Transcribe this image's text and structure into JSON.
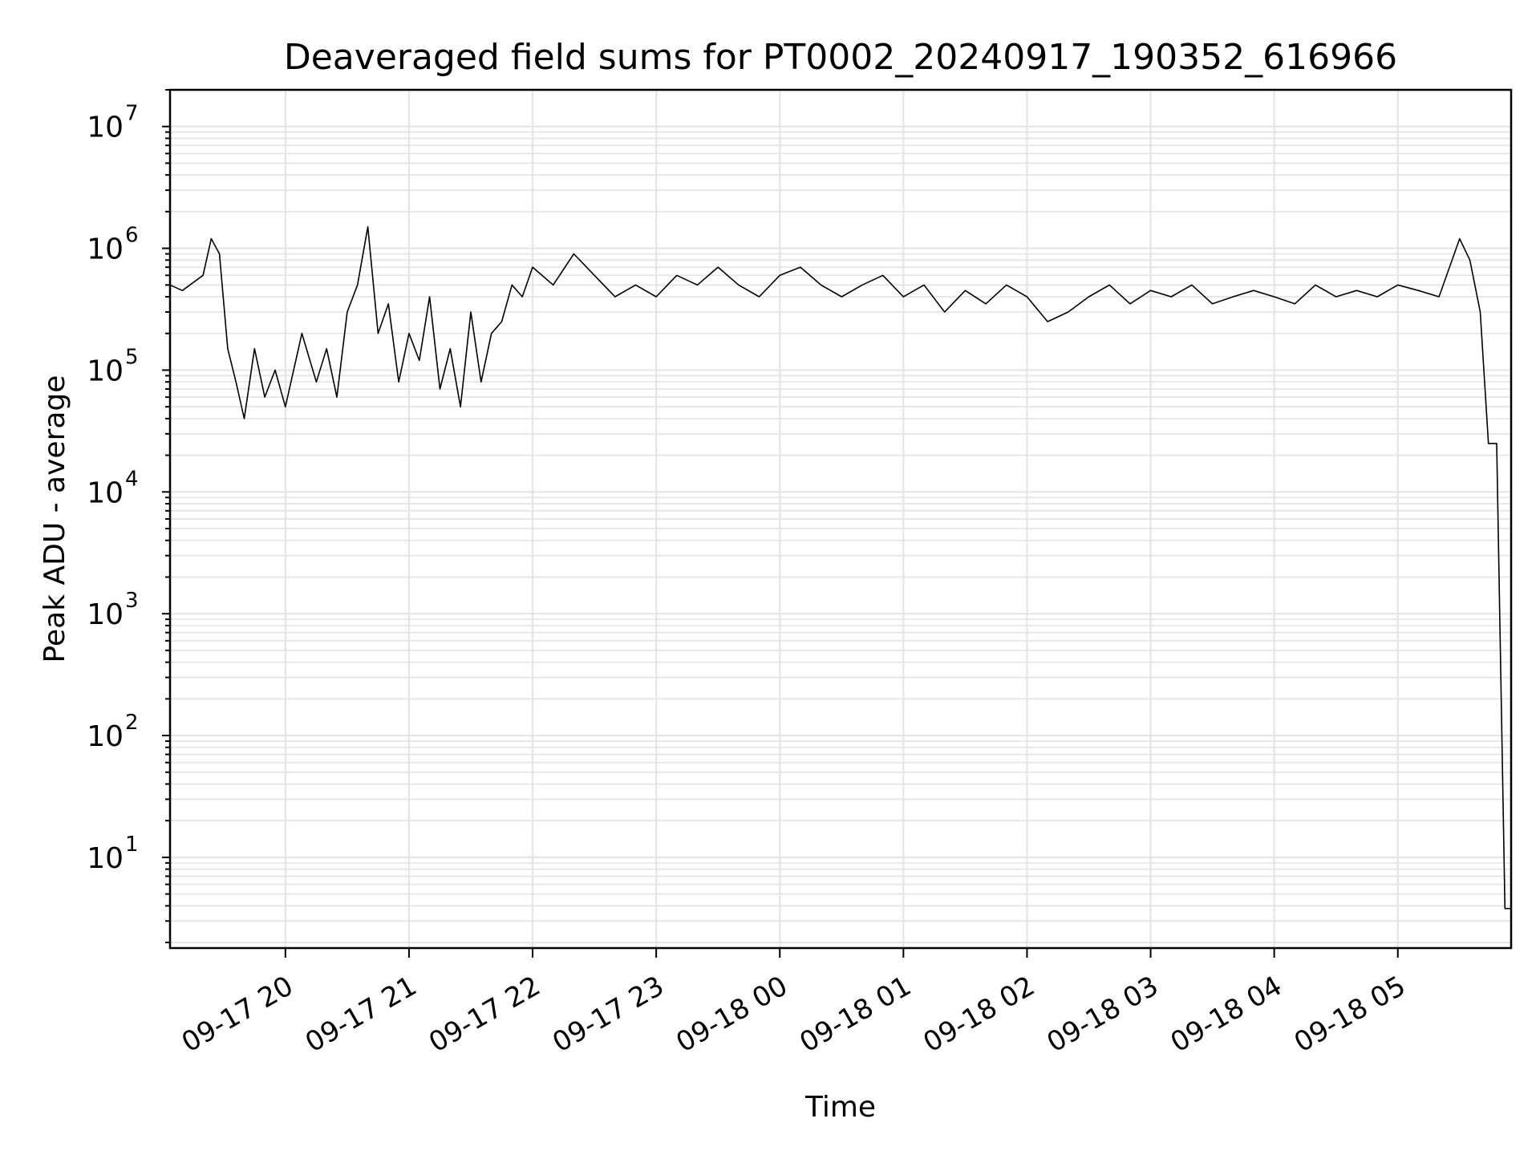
{
  "chart_data": {
    "type": "line",
    "title": "Deaveraged field sums for PT0002_20240917_190352_616966",
    "xlabel": "Time",
    "ylabel": "Peak ADU - average",
    "yscale": "log",
    "ylim": [
      1.8,
      20000000
    ],
    "xlim": [
      "2024-09-17 19:04",
      "2024-09-18 05:55"
    ],
    "grid": true,
    "line_color": "#000000",
    "grid_color": "#e5e5e5",
    "x_ticks": [
      "09-17 20",
      "09-17 21",
      "09-17 22",
      "09-17 23",
      "09-18 00",
      "09-18 01",
      "09-18 02",
      "09-18 03",
      "09-18 04",
      "09-18 05"
    ],
    "y_ticks": [
      {
        "base": "10",
        "exp": "1"
      },
      {
        "base": "10",
        "exp": "2"
      },
      {
        "base": "10",
        "exp": "3"
      },
      {
        "base": "10",
        "exp": "4"
      },
      {
        "base": "10",
        "exp": "5"
      },
      {
        "base": "10",
        "exp": "6"
      },
      {
        "base": "10",
        "exp": "7"
      }
    ],
    "series": [
      {
        "x": [
          "2024-09-17 19:04",
          "2024-09-17 19:10",
          "2024-09-17 19:15",
          "2024-09-17 19:20",
          "2024-09-17 19:24",
          "2024-09-17 19:28",
          "2024-09-17 19:32",
          "2024-09-17 19:36",
          "2024-09-17 19:40",
          "2024-09-17 19:45",
          "2024-09-17 19:50",
          "2024-09-17 19:55",
          "2024-09-17 20:00",
          "2024-09-17 20:08",
          "2024-09-17 20:15",
          "2024-09-17 20:20",
          "2024-09-17 20:25",
          "2024-09-17 20:30",
          "2024-09-17 20:35",
          "2024-09-17 20:40",
          "2024-09-17 20:45",
          "2024-09-17 20:50",
          "2024-09-17 20:55",
          "2024-09-17 21:00",
          "2024-09-17 21:05",
          "2024-09-17 21:10",
          "2024-09-17 21:15",
          "2024-09-17 21:20",
          "2024-09-17 21:25",
          "2024-09-17 21:30",
          "2024-09-17 21:35",
          "2024-09-17 21:40",
          "2024-09-17 21:45",
          "2024-09-17 21:50",
          "2024-09-17 21:55",
          "2024-09-17 22:00",
          "2024-09-17 22:10",
          "2024-09-17 22:20",
          "2024-09-17 22:30",
          "2024-09-17 22:40",
          "2024-09-17 22:50",
          "2024-09-17 23:00",
          "2024-09-17 23:10",
          "2024-09-17 23:20",
          "2024-09-17 23:30",
          "2024-09-17 23:40",
          "2024-09-17 23:50",
          "2024-09-18 00:00",
          "2024-09-18 00:10",
          "2024-09-18 00:20",
          "2024-09-18 00:30",
          "2024-09-18 00:40",
          "2024-09-18 00:50",
          "2024-09-18 01:00",
          "2024-09-18 01:10",
          "2024-09-18 01:20",
          "2024-09-18 01:30",
          "2024-09-18 01:40",
          "2024-09-18 01:50",
          "2024-09-18 02:00",
          "2024-09-18 02:10",
          "2024-09-18 02:20",
          "2024-09-18 02:30",
          "2024-09-18 02:40",
          "2024-09-18 02:50",
          "2024-09-18 03:00",
          "2024-09-18 03:10",
          "2024-09-18 03:20",
          "2024-09-18 03:30",
          "2024-09-18 03:40",
          "2024-09-18 03:50",
          "2024-09-18 04:00",
          "2024-09-18 04:10",
          "2024-09-18 04:20",
          "2024-09-18 04:30",
          "2024-09-18 04:40",
          "2024-09-18 04:50",
          "2024-09-18 05:00",
          "2024-09-18 05:10",
          "2024-09-18 05:20",
          "2024-09-18 05:30",
          "2024-09-18 05:35",
          "2024-09-18 05:40",
          "2024-09-18 05:44",
          "2024-09-18 05:48",
          "2024-09-18 05:52",
          "2024-09-18 05:55"
        ],
        "y": [
          500000,
          450000,
          520000,
          600000,
          1200000,
          900000,
          150000,
          80000,
          40000,
          150000,
          60000,
          100000,
          50000,
          200000,
          80000,
          150000,
          60000,
          300000,
          500000,
          1500000,
          200000,
          350000,
          80000,
          200000,
          120000,
          400000,
          70000,
          150000,
          50000,
          300000,
          80000,
          200000,
          250000,
          500000,
          400000,
          700000,
          500000,
          900000,
          600000,
          400000,
          500000,
          400000,
          600000,
          500000,
          700000,
          500000,
          400000,
          600000,
          700000,
          500000,
          400000,
          500000,
          600000,
          400000,
          500000,
          300000,
          450000,
          350000,
          500000,
          400000,
          250000,
          300000,
          400000,
          500000,
          350000,
          450000,
          400000,
          500000,
          350000,
          400000,
          450000,
          400000,
          350000,
          500000,
          400000,
          450000,
          400000,
          500000,
          450000,
          400000,
          1200000,
          800000,
          300000,
          25000,
          25000,
          3.8,
          3.8
        ]
      }
    ]
  }
}
